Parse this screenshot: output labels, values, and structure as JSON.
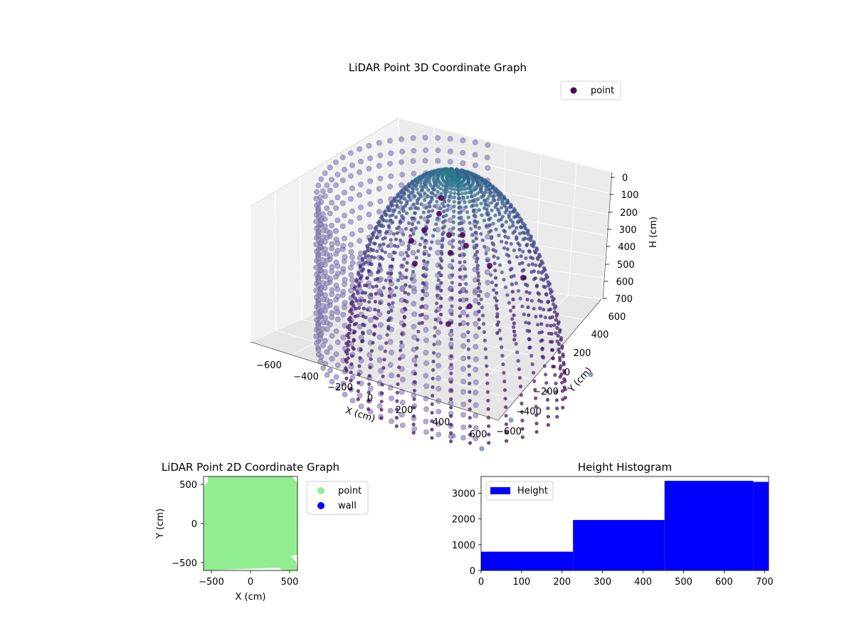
{
  "chart_data": [
    {
      "type": "scatter",
      "projection": "3d",
      "title": "LiDAR Point 3D Coordinate Graph",
      "xlabel": "X (cm)",
      "ylabel": "Y (cm)",
      "zlabel": "H (cm)",
      "xlim": [
        -600,
        600
      ],
      "ylim": [
        -600,
        600
      ],
      "zlim": [
        700,
        0
      ],
      "xticks": [
        "−600",
        "−400",
        "−200",
        "0",
        "200",
        "400",
        "600"
      ],
      "yticks": [
        "−600",
        "−400",
        "−200",
        "0",
        "200",
        "400",
        "600"
      ],
      "zticks": [
        "0",
        "100",
        "200",
        "300",
        "400",
        "500",
        "600",
        "700"
      ],
      "legend": [
        {
          "label": "point",
          "color": "#440154"
        }
      ],
      "legend_location": "upper-right",
      "colormap": [
        "#440154",
        "#482878",
        "#3e4989",
        "#31688e",
        "#26828e"
      ],
      "point_color_light": "#6f86b3",
      "grid": true,
      "shape": "hemispherical bowl of scan rings with radial wall stripes around the base"
    },
    {
      "type": "scatter",
      "title": "LiDAR Point 2D Coordinate Graph",
      "xlabel": "X (cm)",
      "ylabel": "Y (cm)",
      "xlim": [
        -600,
        600
      ],
      "ylim": [
        -600,
        600
      ],
      "xticks": [
        "−500",
        "0",
        "500"
      ],
      "yticks": [
        "−500",
        "0",
        "500"
      ],
      "legend": [
        {
          "label": "point",
          "color": "#90ee90"
        },
        {
          "label": "wall",
          "color": "#0000ff"
        }
      ],
      "legend_location": "outside-right",
      "fill_color": "#90ee90"
    },
    {
      "type": "bar",
      "title": "Height Histogram",
      "legend": [
        {
          "label": "Height",
          "color": "#0000ff"
        }
      ],
      "legend_location": "upper-left",
      "xlim": [
        0,
        710
      ],
      "ylim": [
        0,
        3650
      ],
      "xticks": [
        "0",
        "100",
        "200",
        "300",
        "400",
        "500",
        "600",
        "700"
      ],
      "yticks": [
        "0",
        "1000",
        "2000",
        "3000"
      ],
      "bins": [
        {
          "x0": 0,
          "x1": 227,
          "value": 730
        },
        {
          "x0": 227,
          "x1": 453,
          "value": 1960
        },
        {
          "x0": 453,
          "x1": 672,
          "value": 3480
        },
        {
          "x0": 672,
          "x1": 710,
          "value": 3440
        }
      ],
      "bar_color": "#0000ff"
    }
  ]
}
